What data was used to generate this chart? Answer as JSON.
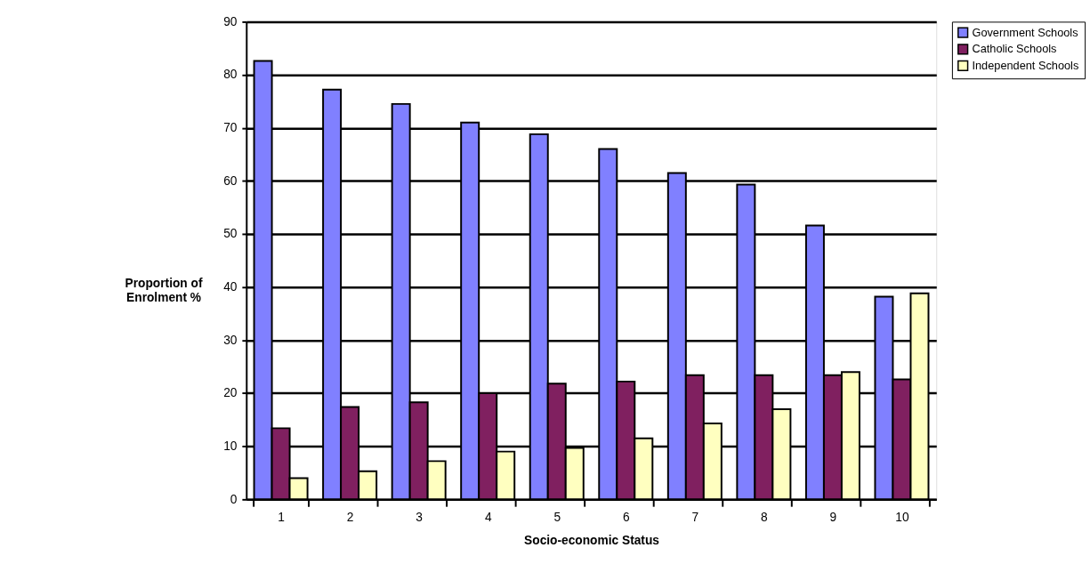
{
  "chart_data": {
    "type": "bar",
    "xlabel": "Socio-economic  Status",
    "ylabel": "Proportion  of\nEnrolment  %",
    "categories": [
      "1",
      "2",
      "3",
      "4",
      "5",
      "6",
      "7",
      "8",
      "9",
      "10"
    ],
    "series": [
      {
        "name": "Government Schools",
        "color": "#8080ff",
        "values": [
          82.6,
          77.2,
          74.5,
          71.0,
          68.8,
          66.0,
          61.5,
          59.3,
          51.6,
          38.2
        ]
      },
      {
        "name": "Catholic Schools",
        "color": "#802060",
        "values": [
          13.4,
          17.4,
          18.3,
          20.0,
          21.8,
          22.2,
          23.4,
          23.4,
          23.4,
          22.6
        ]
      },
      {
        "name": "Independent Schools",
        "color": "#ffffc0",
        "values": [
          4.0,
          5.3,
          7.2,
          9.0,
          9.7,
          11.5,
          14.3,
          17.0,
          24.0,
          38.8
        ]
      }
    ],
    "ylim": [
      0,
      90
    ],
    "yticks": [
      0,
      10,
      20,
      30,
      40,
      50,
      60,
      70,
      80,
      90
    ],
    "grid": "y",
    "legend": "right"
  }
}
